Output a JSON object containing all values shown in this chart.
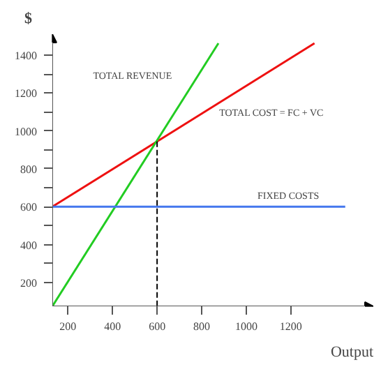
{
  "chart_data": {
    "type": "line",
    "xlabel": "Output",
    "ylabel": "$",
    "xlim": [
      130,
      1570
    ],
    "ylim": [
      75,
      1510
    ],
    "xticks": [
      200,
      400,
      600,
      800,
      1000,
      1200
    ],
    "yticks": [
      200,
      {
        "value": 300,
        "label": null
      },
      400,
      {
        "value": 500,
        "label": null
      },
      600,
      {
        "value": 700,
        "label": null
      },
      800,
      {
        "value": 900,
        "label": null
      },
      1000,
      {
        "value": 1100,
        "label": null
      },
      1200,
      {
        "value": 1300,
        "label": null
      },
      1400
    ],
    "series": [
      {
        "color": "#ee1111",
        "x": [
          130,
          1306
        ],
        "values": [
          600,
          1462
        ]
      },
      {
        "color": "#22cc22",
        "x": [
          130,
          875
        ],
        "values": [
          75,
          1462
        ]
      },
      {
        "color": "#4477ee",
        "x": [
          130,
          1444
        ],
        "values": [
          600,
          600
        ]
      }
    ],
    "ref_lines": [
      {
        "axis": "x",
        "value": 600,
        "color": "#000000",
        "line_style": "dashed"
      }
    ],
    "annotations": [
      "TOTAL REVENUE",
      "TOTAL COST = FC + VC",
      "FIXED COSTS"
    ],
    "grid": false
  }
}
